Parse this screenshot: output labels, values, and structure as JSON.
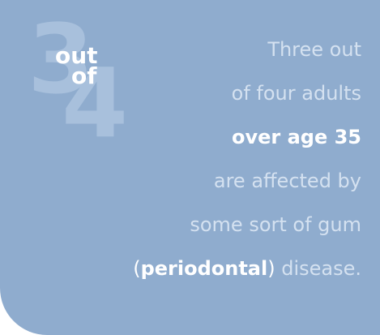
{
  "graphic": {
    "number_top": "3",
    "number_bottom": "4",
    "word_top": "out",
    "word_bottom": "of"
  },
  "statement": {
    "line1": "Three out",
    "line2": "of four adults",
    "line3": "over age 35",
    "line4": "are affected by",
    "line5": "some sort of gum",
    "line6_open_paren": "(",
    "line6_term": "periodontal",
    "line6_close_paren": ")",
    "line6_rest": " disease."
  },
  "colors": {
    "background": "#8facce",
    "numeral": "#a8c0dc",
    "light_text": "#d4e1f0",
    "emphasis_text": "#ffffff"
  }
}
